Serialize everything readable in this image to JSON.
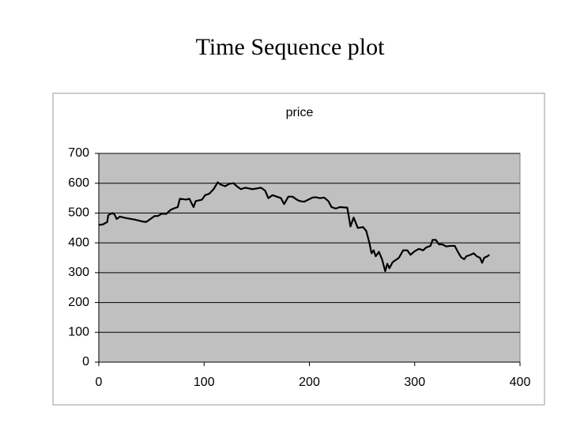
{
  "slide": {
    "title": "Time Sequence plot"
  },
  "chart_data": {
    "type": "line",
    "title": "price",
    "x": [
      0,
      4,
      8,
      9,
      13,
      15,
      17,
      20,
      26,
      34,
      41,
      45,
      49,
      53,
      56,
      60,
      64,
      68,
      71,
      75,
      77,
      83,
      86,
      90,
      92,
      98,
      101,
      105,
      109,
      113,
      116,
      120,
      124,
      128,
      131,
      135,
      139,
      146,
      154,
      158,
      161,
      165,
      169,
      173,
      176,
      180,
      184,
      188,
      191,
      195,
      199,
      203,
      206,
      210,
      214,
      218,
      221,
      225,
      229,
      236,
      239,
      242,
      246,
      251,
      254,
      257,
      259,
      261,
      263,
      266,
      269,
      272,
      274,
      276,
      279,
      281,
      285,
      289,
      293,
      296,
      300,
      304,
      308,
      311,
      315,
      317,
      320,
      323,
      326,
      330,
      334,
      338,
      341,
      344,
      347,
      349,
      353,
      356,
      359,
      362,
      364,
      366,
      369,
      371
    ],
    "series": [
      {
        "name": "price",
        "color": "#000000",
        "values": [
          460,
          462,
          470,
          493,
          500,
          495,
          480,
          488,
          483,
          478,
          472,
          470,
          480,
          490,
          490,
          498,
          497,
          510,
          515,
          520,
          548,
          545,
          548,
          520,
          540,
          545,
          560,
          565,
          580,
          603,
          595,
          590,
          598,
          600,
          590,
          580,
          585,
          580,
          585,
          575,
          550,
          560,
          555,
          550,
          530,
          555,
          555,
          545,
          540,
          538,
          545,
          552,
          553,
          550,
          552,
          540,
          520,
          515,
          520,
          518,
          455,
          485,
          450,
          453,
          440,
          400,
          365,
          375,
          355,
          370,
          345,
          305,
          330,
          315,
          335,
          340,
          350,
          375,
          375,
          360,
          372,
          380,
          375,
          385,
          390,
          410,
          410,
          395,
          395,
          388,
          390,
          390,
          370,
          352,
          345,
          355,
          360,
          365,
          355,
          350,
          333,
          350,
          355,
          360
        ]
      }
    ],
    "xlim": [
      0,
      400
    ],
    "xticks": [
      0,
      100,
      200,
      300,
      400
    ],
    "ylim": [
      0,
      700
    ],
    "yticks": [
      0,
      100,
      200,
      300,
      400,
      500,
      600,
      700
    ],
    "grid": true
  }
}
